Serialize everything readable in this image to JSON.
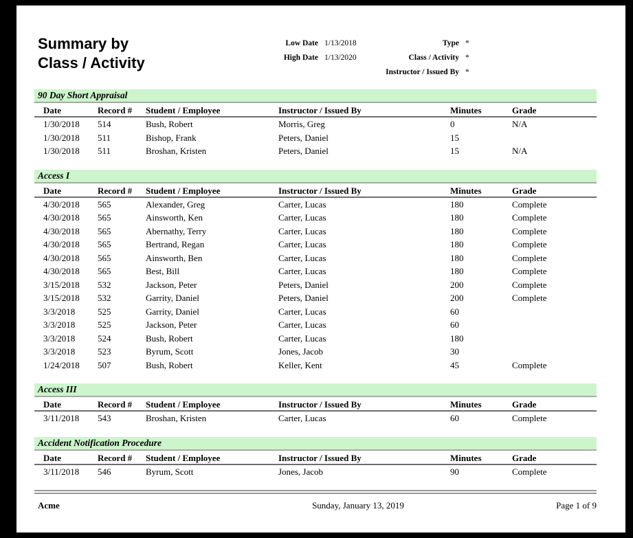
{
  "title": {
    "line1": "Summary by",
    "line2": "Class / Activity"
  },
  "filters": {
    "left": [
      {
        "label": "Low Date",
        "value": "1/13/2018"
      },
      {
        "label": "High Date",
        "value": "1/13/2020"
      }
    ],
    "right": [
      {
        "label": "Type",
        "value": "*"
      },
      {
        "label": "Class / Activity",
        "value": "*"
      },
      {
        "label": "Instructor / Issued By",
        "value": "*"
      }
    ]
  },
  "columns": [
    "Date",
    "Record #",
    "Student / Employee",
    "Instructor / Issued By",
    "Minutes",
    "Grade"
  ],
  "sections": [
    {
      "title": "90 Day Short Appraisal",
      "rows": [
        [
          "1/30/2018",
          "514",
          "Bush, Robert",
          "Morris, Greg",
          "0",
          "N/A"
        ],
        [
          "1/30/2018",
          "511",
          "Bishop, Frank",
          "Peters, Daniel",
          "15",
          ""
        ],
        [
          "1/30/2018",
          "511",
          "Broshan, Kristen",
          "Peters, Daniel",
          "15",
          "N/A"
        ]
      ]
    },
    {
      "title": "Access I",
      "rows": [
        [
          "4/30/2018",
          "565",
          "Alexander, Greg",
          "Carter, Lucas",
          "180",
          "Complete"
        ],
        [
          "4/30/2018",
          "565",
          "Ainsworth, Ken",
          "Carter, Lucas",
          "180",
          "Complete"
        ],
        [
          "4/30/2018",
          "565",
          "Abernathy, Terry",
          "Carter, Lucas",
          "180",
          "Complete"
        ],
        [
          "4/30/2018",
          "565",
          "Bertrand, Regan",
          "Carter, Lucas",
          "180",
          "Complete"
        ],
        [
          "4/30/2018",
          "565",
          "Ainsworth, Ben",
          "Carter, Lucas",
          "180",
          "Complete"
        ],
        [
          "4/30/2018",
          "565",
          "Best, Bill",
          "Carter, Lucas",
          "180",
          "Complete"
        ],
        [
          "3/15/2018",
          "532",
          "Jackson, Peter",
          "Peters, Daniel",
          "200",
          "Complete"
        ],
        [
          "3/15/2018",
          "532",
          "Garrity, Daniel",
          "Peters, Daniel",
          "200",
          "Complete"
        ],
        [
          "3/3/2018",
          "525",
          "Garrity, Daniel",
          "Carter, Lucas",
          "60",
          ""
        ],
        [
          "3/3/2018",
          "525",
          "Jackson, Peter",
          "Carter, Lucas",
          "60",
          ""
        ],
        [
          "3/3/2018",
          "524",
          "Bush, Robert",
          "Carter, Lucas",
          "180",
          ""
        ],
        [
          "3/3/2018",
          "523",
          "Byrum, Scott",
          "Jones, Jacob",
          "30",
          ""
        ],
        [
          "1/24/2018",
          "507",
          "Bush, Robert",
          "Keller, Kent",
          "45",
          "Complete"
        ]
      ]
    },
    {
      "title": "Access III",
      "rows": [
        [
          "3/11/2018",
          "543",
          "Broshan, Kristen",
          "Carter, Lucas",
          "60",
          "Complete"
        ]
      ]
    },
    {
      "title": "Accident Notification Procedure",
      "rows": [
        [
          "3/11/2018",
          "546",
          "Byrum, Scott",
          "Jones, Jacob",
          "90",
          "Complete"
        ]
      ]
    }
  ],
  "footer": {
    "company": "Acme",
    "date": "Sunday, January 13, 2019",
    "page": "Page 1 of 9"
  },
  "colors": {
    "frame_bg": "#000000",
    "page_bg": "#ffffff",
    "section_bar_bg": "#ccf5cc",
    "section_bar_border": "#a8a8a8",
    "header_rule": "#6e6e6e",
    "footer_rule": "#979797"
  }
}
